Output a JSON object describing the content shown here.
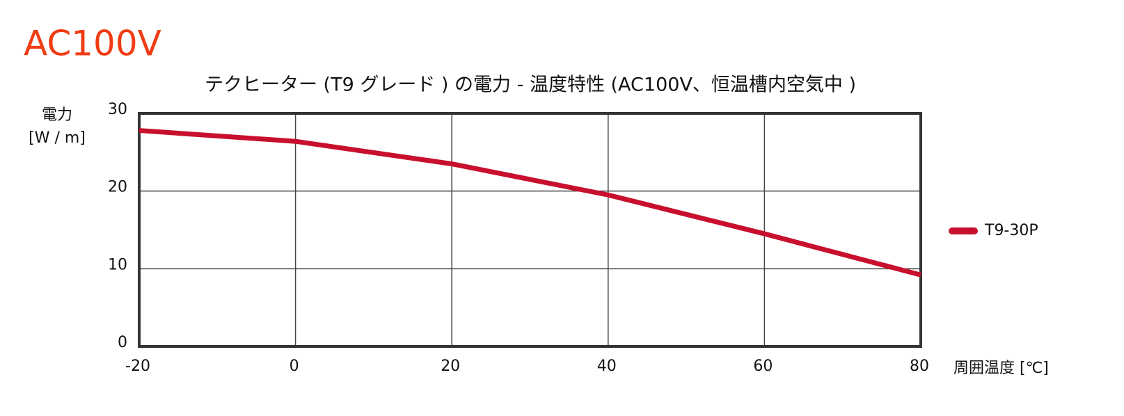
{
  "header": "AC100V",
  "chart_data": {
    "type": "line",
    "title": "テクヒーター (T9 グレード ) の電力 - 温度特性 (AC100V、恒温槽内空気中 )",
    "ylabel": "電力",
    "yunit": "[W / m]",
    "xlabel": "周囲温度 [℃]",
    "x": [
      -20,
      0,
      20,
      40,
      60,
      80
    ],
    "series": [
      {
        "name": "T9-30P",
        "color": "#c8102e",
        "values": [
          27.8,
          26.4,
          23.5,
          19.5,
          14.5,
          9.2
        ]
      }
    ],
    "xlim": [
      -20,
      80
    ],
    "xticks": [
      -20,
      0,
      20,
      40,
      60,
      80
    ],
    "ylim": [
      0,
      30
    ],
    "yticks": [
      0,
      10,
      20,
      30
    ],
    "grid": true,
    "legend": "right"
  }
}
